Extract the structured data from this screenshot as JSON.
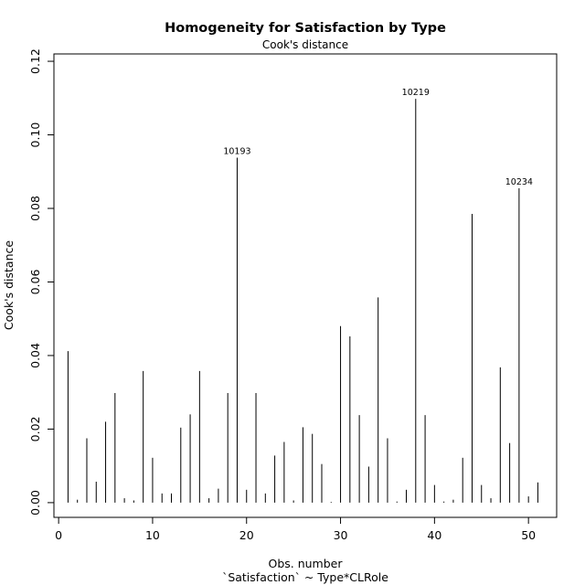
{
  "chart_data": {
    "type": "bar",
    "title": "Homogeneity for Satisfaction by Type",
    "subtitle": "Cook's distance",
    "xlabel": "Obs. number",
    "xlabel2": "`Satisfaction` ~ Type*CLRole",
    "ylabel": "Cook's distance",
    "xlim": [
      -0.5,
      53
    ],
    "ylim": [
      -0.004,
      0.122
    ],
    "xticks": [
      0,
      10,
      20,
      30,
      40,
      50
    ],
    "xtick_labels": [
      "0",
      "10",
      "20",
      "30",
      "40",
      "50"
    ],
    "yticks": [
      0.0,
      0.02,
      0.04,
      0.06,
      0.08,
      0.1,
      0.12
    ],
    "ytick_labels": [
      "0.00",
      "0.02",
      "0.04",
      "0.06",
      "0.08",
      "0.10",
      "0.12"
    ],
    "x": [
      1,
      2,
      3,
      4,
      5,
      6,
      7,
      8,
      9,
      10,
      11,
      12,
      13,
      14,
      15,
      16,
      17,
      18,
      19,
      20,
      21,
      22,
      23,
      24,
      25,
      26,
      27,
      28,
      29,
      30,
      31,
      32,
      33,
      34,
      35,
      36,
      37,
      38,
      39,
      40,
      41,
      42,
      43,
      44,
      45,
      46,
      47,
      48,
      49,
      50,
      51
    ],
    "values": [
      0.0412,
      0.0008,
      0.0175,
      0.0057,
      0.022,
      0.0298,
      0.0012,
      0.0006,
      0.0358,
      0.0122,
      0.0025,
      0.0025,
      0.0204,
      0.024,
      0.0358,
      0.0012,
      0.0038,
      0.0298,
      0.0938,
      0.0035,
      0.0298,
      0.0025,
      0.0128,
      0.0165,
      0.0006,
      0.0205,
      0.0187,
      0.0105,
      0.0002,
      0.048,
      0.0452,
      0.0238,
      0.0098,
      0.0558,
      0.0175,
      0.0003,
      0.0035,
      0.1098,
      0.0238,
      0.0048,
      0.0003,
      0.0008,
      0.0122,
      0.0785,
      0.0048,
      0.0012,
      0.0368,
      0.0162,
      0.0855,
      0.0017,
      0.0055
    ],
    "annotations": [
      {
        "x": 19,
        "y": 0.0938,
        "label": "10193"
      },
      {
        "x": 38,
        "y": 0.1098,
        "label": "10219"
      },
      {
        "x": 49,
        "y": 0.0855,
        "label": "10234"
      }
    ],
    "grid": false,
    "legend": "none"
  }
}
